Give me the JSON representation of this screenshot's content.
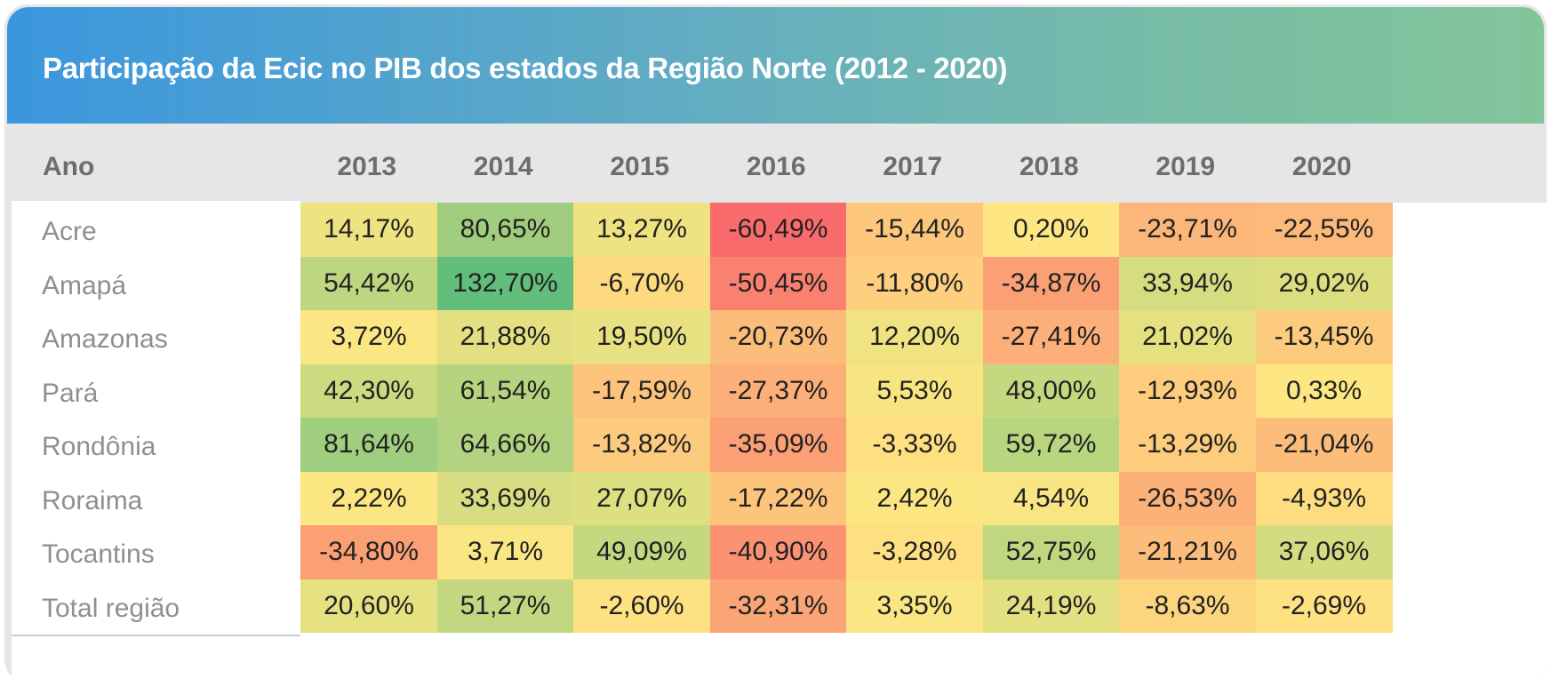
{
  "title": "Participação da Ecic no PIB dos estados da Região Norte (2012 - 2020)",
  "chart_data": {
    "type": "heatmap",
    "title": "Participação da Ecic no PIB dos estados da Região Norte (2012 - 2020)",
    "row_header": "Ano",
    "columns": [
      "2013",
      "2014",
      "2015",
      "2016",
      "2017",
      "2018",
      "2019",
      "2020"
    ],
    "rows": [
      {
        "label": "Acre",
        "values": [
          14.17,
          80.65,
          13.27,
          -60.49,
          -15.44,
          0.2,
          -23.71,
          -22.55
        ],
        "display": [
          "14,17%",
          "80,65%",
          "13,27%",
          "-60,49%",
          "-15,44%",
          "0,20%",
          "-23,71%",
          "-22,55%"
        ]
      },
      {
        "label": "Amapá",
        "values": [
          54.42,
          132.7,
          -6.7,
          -50.45,
          -11.8,
          -34.87,
          33.94,
          29.02
        ],
        "display": [
          "54,42%",
          "132,70%",
          "-6,70%",
          "-50,45%",
          "-11,80%",
          "-34,87%",
          "33,94%",
          "29,02%"
        ]
      },
      {
        "label": "Amazonas",
        "values": [
          3.72,
          21.88,
          19.5,
          -20.73,
          12.2,
          -27.41,
          21.02,
          -13.45
        ],
        "display": [
          "3,72%",
          "21,88%",
          "19,50%",
          "-20,73%",
          "12,20%",
          "-27,41%",
          "21,02%",
          "-13,45%"
        ]
      },
      {
        "label": "Pará",
        "values": [
          42.3,
          61.54,
          -17.59,
          -27.37,
          5.53,
          48.0,
          -12.93,
          0.33
        ],
        "display": [
          "42,30%",
          "61,54%",
          "-17,59%",
          "-27,37%",
          "5,53%",
          "48,00%",
          "-12,93%",
          "0,33%"
        ]
      },
      {
        "label": "Rondônia",
        "values": [
          81.64,
          64.66,
          -13.82,
          -35.09,
          -3.33,
          59.72,
          -13.29,
          -21.04
        ],
        "display": [
          "81,64%",
          "64,66%",
          "-13,82%",
          "-35,09%",
          "-3,33%",
          "59,72%",
          "-13,29%",
          "-21,04%"
        ]
      },
      {
        "label": "Roraima",
        "values": [
          2.22,
          33.69,
          27.07,
          -17.22,
          2.42,
          4.54,
          -26.53,
          -4.93
        ],
        "display": [
          "2,22%",
          "33,69%",
          "27,07%",
          "-17,22%",
          "2,42%",
          "4,54%",
          "-26,53%",
          "-4,93%"
        ]
      },
      {
        "label": "Tocantins",
        "values": [
          -34.8,
          3.71,
          49.09,
          -40.9,
          -3.28,
          52.75,
          -21.21,
          37.06
        ],
        "display": [
          "-34,80%",
          "3,71%",
          "49,09%",
          "-40,90%",
          "-3,28%",
          "52,75%",
          "-21,21%",
          "37,06%"
        ]
      },
      {
        "label": "Total região",
        "values": [
          20.6,
          51.27,
          -2.6,
          -32.31,
          3.35,
          24.19,
          -8.63,
          -2.69
        ],
        "display": [
          "20,60%",
          "51,27%",
          "-2,60%",
          "-32,31%",
          "3,35%",
          "24,19%",
          "-8,63%",
          "-2,69%"
        ]
      }
    ],
    "color_scale": {
      "min": -60.49,
      "mid": 0,
      "max": 132.7,
      "min_color": "#f96b6c",
      "mid_color": "#fee782",
      "max_color": "#63be7b"
    }
  }
}
